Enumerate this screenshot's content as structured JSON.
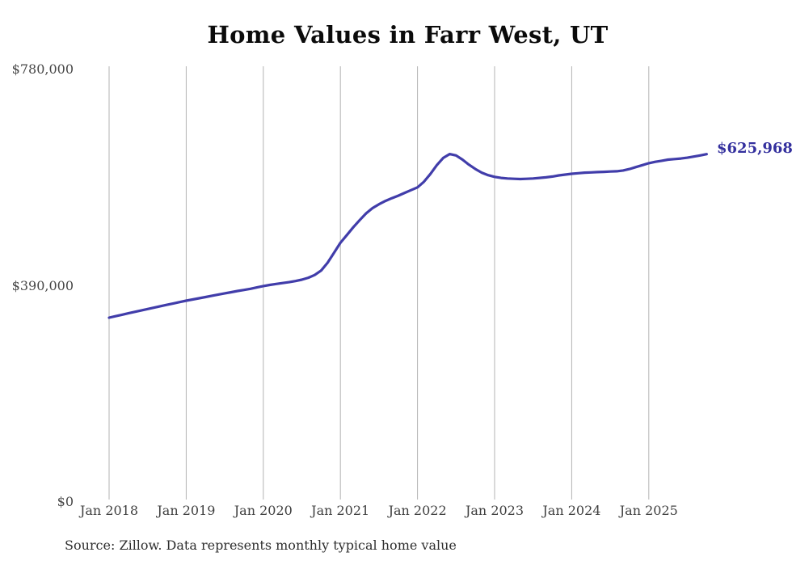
{
  "page": {
    "background": "#ffffff"
  },
  "chart_data": {
    "type": "line",
    "title": "Home Values in Farr West, UT",
    "source_note": "Source: Zillow. Data represents monthly typical home value",
    "end_label": "$625,968",
    "legend": "none",
    "grid": "vertical-only",
    "xlabel": "",
    "ylabel": "",
    "ylim": [
      0,
      780000
    ],
    "y_ticks": [
      {
        "label": "$0",
        "value": 0
      },
      {
        "label": "$390,000",
        "value": 390000
      },
      {
        "label": "$780,000",
        "value": 780000
      }
    ],
    "x_tick_labels": [
      "Jan 2018",
      "Jan 2019",
      "Jan 2020",
      "Jan 2021",
      "Jan 2022",
      "Jan 2023",
      "Jan 2024",
      "Jan 2025"
    ],
    "series": [
      {
        "name": "Monthly typical home value",
        "start_month": "2018-01",
        "end_month": "2025-10",
        "values": [
          331000,
          333600,
          336200,
          338800,
          341400,
          344000,
          346600,
          349100,
          351600,
          354100,
          356600,
          359100,
          361600,
          363800,
          366000,
          368200,
          370400,
          372600,
          374800,
          376900,
          379000,
          381000,
          383000,
          385500,
          388000,
          390000,
          391800,
          393400,
          395000,
          397000,
          399500,
          403000,
          408000,
          416000,
          430000,
          448000,
          466000,
          480000,
          494000,
          507000,
          519000,
          528500,
          535500,
          541500,
          546500,
          551000,
          556000,
          561000,
          566000,
          576000,
          590000,
          606000,
          619000,
          626000,
          623500,
          616000,
          607000,
          599000,
          592500,
          588000,
          585000,
          583000,
          582000,
          581500,
          581000,
          581500,
          582000,
          583000,
          584000,
          585500,
          587500,
          589000,
          590500,
          591500,
          592500,
          593000,
          593500,
          594000,
          594500,
          595000,
          596500,
          599000,
          602500,
          606000,
          609500,
          612000,
          614000,
          616000,
          617000,
          618000,
          619500,
          621500,
          623500,
          625968
        ]
      }
    ],
    "colors": {
      "line": "#413daa",
      "accent_text": "#34309e",
      "gridline": "#b3b3b3",
      "axis_text": "#474747",
      "title_text": "#0b0b0b"
    }
  }
}
